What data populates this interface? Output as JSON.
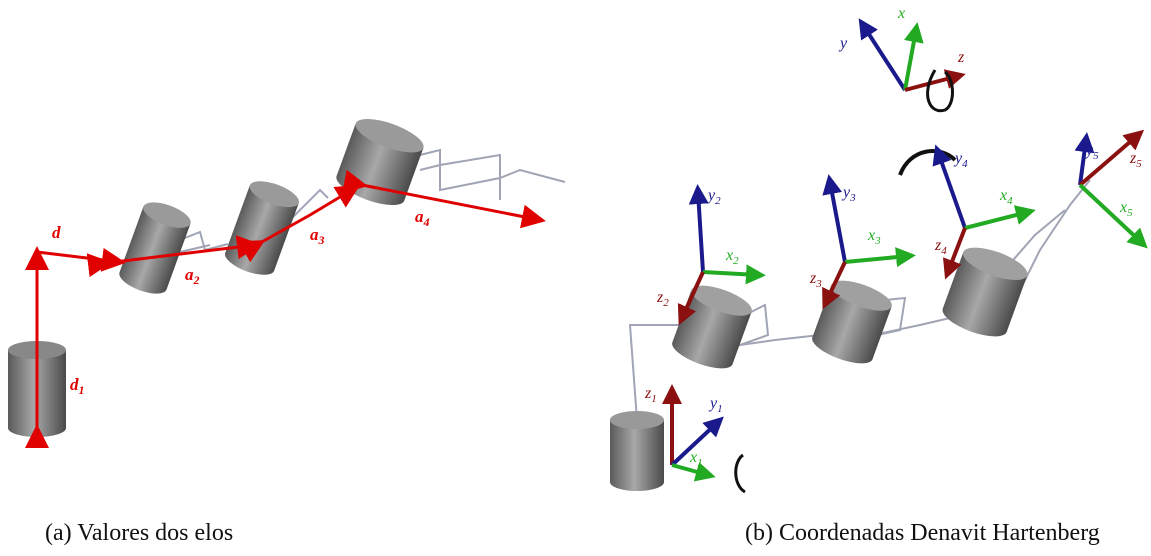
{
  "panel_a": {
    "caption": "(a) Valores dos elos",
    "labels": [
      {
        "symbol": "d"
      },
      {
        "symbol": "d",
        "subscript": "1"
      },
      {
        "symbol": "a",
        "subscript": "2"
      },
      {
        "symbol": "a",
        "subscript": "3"
      },
      {
        "symbol": "a",
        "subscript": "4"
      }
    ]
  },
  "panel_b": {
    "caption": "(b) Coordenadas Denavit Hartenberg",
    "labels": [
      {
        "symbol": "y"
      },
      {
        "symbol": "x"
      },
      {
        "symbol": "z"
      },
      {
        "symbol": "y",
        "subscript": "5"
      },
      {
        "symbol": "z",
        "subscript": "5"
      },
      {
        "symbol": "x",
        "subscript": "5"
      },
      {
        "symbol": "y",
        "subscript": "4"
      },
      {
        "symbol": "x",
        "subscript": "4"
      },
      {
        "symbol": "z",
        "subscript": "4"
      },
      {
        "symbol": "y",
        "subscript": "3"
      },
      {
        "symbol": "x",
        "subscript": "3"
      },
      {
        "symbol": "z",
        "subscript": "3"
      },
      {
        "symbol": "y",
        "subscript": "2"
      },
      {
        "symbol": "x",
        "subscript": "2"
      },
      {
        "symbol": "z",
        "subscript": "2"
      },
      {
        "symbol": "z",
        "subscript": "1"
      },
      {
        "symbol": "y",
        "subscript": "1"
      },
      {
        "symbol": "x",
        "subscript": "1"
      }
    ]
  }
}
